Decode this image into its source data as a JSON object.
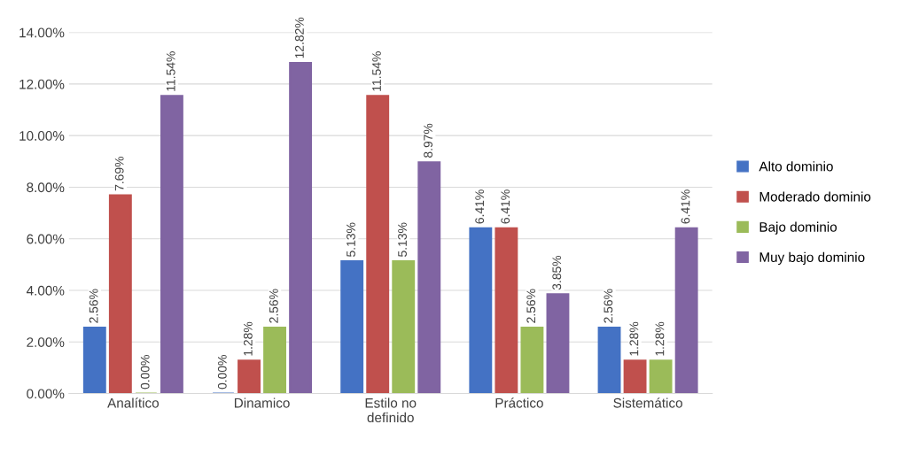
{
  "chart_data": {
    "type": "bar",
    "categories": [
      "Analítico",
      "Dinamico",
      "Estilo no\ndefinido",
      "Práctico",
      "Sistemático"
    ],
    "series": [
      {
        "name": "Alto dominio",
        "color": "#4472c4",
        "values": [
          2.56,
          0.0,
          5.13,
          6.41,
          2.56
        ],
        "value_labels": [
          "2.56%",
          "0.00%",
          "5.13%",
          "6.41%",
          "2.56%"
        ]
      },
      {
        "name": "Moderado dominio",
        "color": "#c0504d",
        "values": [
          7.69,
          1.28,
          11.54,
          6.41,
          1.28
        ],
        "value_labels": [
          "7.69%",
          "1.28%",
          "11.54%",
          "6.41%",
          "1.28%"
        ]
      },
      {
        "name": "Bajo dominio",
        "color": "#9bbb59",
        "values": [
          0.0,
          2.56,
          5.13,
          2.56,
          1.28
        ],
        "value_labels": [
          "0.00%",
          "2.56%",
          "5.13%",
          "2.56%",
          "1.28%"
        ]
      },
      {
        "name": "Muy bajo dominio",
        "color": "#8064a2",
        "values": [
          11.54,
          12.82,
          8.97,
          3.85,
          6.41
        ],
        "value_labels": [
          "11.54%",
          "12.82%",
          "8.97%",
          "3.85%",
          "6.41%"
        ]
      }
    ],
    "ylim": [
      0,
      14
    ],
    "yticks": [
      {
        "value": 0,
        "label": "0.00%"
      },
      {
        "value": 2,
        "label": "2.00%"
      },
      {
        "value": 4,
        "label": "4.00%"
      },
      {
        "value": 6,
        "label": "6.00%"
      },
      {
        "value": 8,
        "label": "8.00%"
      },
      {
        "value": 10,
        "label": "10.00%"
      },
      {
        "value": 12,
        "label": "12.00%"
      },
      {
        "value": 14,
        "label": "14.00%"
      }
    ],
    "grid": "y",
    "legend": "right"
  }
}
